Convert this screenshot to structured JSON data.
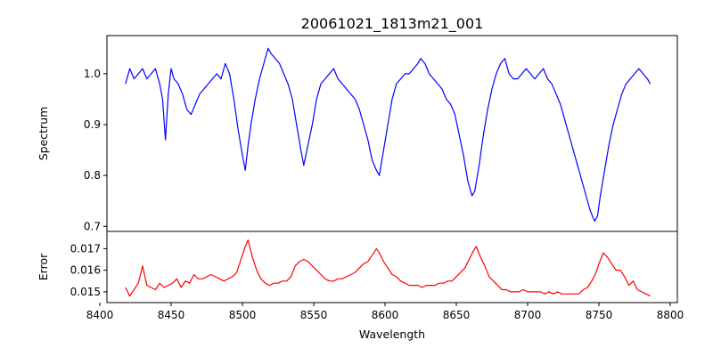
{
  "chart_data": [
    {
      "type": "line",
      "title": "20061021_1813m21_001",
      "xlabel": "",
      "ylabel": "Spectrum",
      "xlim": [
        8405,
        8805
      ],
      "ylim": [
        0.69,
        1.075
      ],
      "yticks": [
        0.7,
        0.8,
        0.9,
        1.0
      ],
      "ytick_labels": [
        "0.7",
        "0.8",
        "0.9",
        "1.0"
      ],
      "grid": false,
      "series": [
        {
          "color": "#0000ff",
          "x": [
            8418,
            8421,
            8424,
            8427,
            8430,
            8433,
            8436,
            8439,
            8442,
            8444,
            8446,
            8448,
            8450,
            8452,
            8455,
            8458,
            8461,
            8464,
            8467,
            8470,
            8473,
            8476,
            8479,
            8482,
            8485,
            8488,
            8491,
            8494,
            8497,
            8500,
            8502,
            8504,
            8506,
            8509,
            8512,
            8515,
            8518,
            8520,
            8523,
            8526,
            8529,
            8532,
            8535,
            8538,
            8541,
            8543,
            8546,
            8549,
            8552,
            8555,
            8558,
            8561,
            8564,
            8567,
            8570,
            8573,
            8576,
            8579,
            8582,
            8585,
            8588,
            8591,
            8594,
            8596,
            8599,
            8602,
            8605,
            8608,
            8611,
            8614,
            8617,
            8620,
            8623,
            8625,
            8628,
            8631,
            8634,
            8637,
            8640,
            8643,
            8646,
            8649,
            8652,
            8655,
            8658,
            8661,
            8663,
            8666,
            8669,
            8672,
            8675,
            8678,
            8681,
            8684,
            8687,
            8690,
            8693,
            8696,
            8699,
            8702,
            8705,
            8708,
            8711,
            8714,
            8717,
            8720,
            8723,
            8726,
            8729,
            8732,
            8735,
            8738,
            8741,
            8744,
            8747,
            8749,
            8751,
            8754,
            8757,
            8760,
            8763,
            8766,
            8769,
            8772,
            8775,
            8778,
            8781,
            8784,
            8786
          ],
          "y": [
            0.98,
            1.01,
            0.99,
            1.0,
            1.01,
            0.99,
            1.0,
            1.01,
            0.98,
            0.95,
            0.87,
            0.96,
            1.01,
            0.99,
            0.98,
            0.96,
            0.93,
            0.92,
            0.94,
            0.96,
            0.97,
            0.98,
            0.99,
            1.0,
            0.99,
            1.02,
            1.0,
            0.95,
            0.89,
            0.84,
            0.81,
            0.86,
            0.9,
            0.95,
            0.99,
            1.02,
            1.05,
            1.04,
            1.03,
            1.02,
            1.0,
            0.98,
            0.95,
            0.9,
            0.85,
            0.82,
            0.86,
            0.9,
            0.95,
            0.98,
            0.99,
            1.0,
            1.01,
            0.99,
            0.98,
            0.97,
            0.96,
            0.95,
            0.93,
            0.9,
            0.87,
            0.83,
            0.81,
            0.8,
            0.85,
            0.9,
            0.95,
            0.98,
            0.99,
            1.0,
            1.0,
            1.01,
            1.02,
            1.03,
            1.02,
            1.0,
            0.99,
            0.98,
            0.97,
            0.95,
            0.94,
            0.92,
            0.88,
            0.84,
            0.79,
            0.76,
            0.77,
            0.82,
            0.88,
            0.93,
            0.97,
            1.0,
            1.02,
            1.03,
            1.0,
            0.99,
            0.99,
            1.0,
            1.01,
            1.0,
            0.99,
            1.0,
            1.01,
            0.99,
            0.98,
            0.96,
            0.94,
            0.91,
            0.88,
            0.85,
            0.82,
            0.79,
            0.76,
            0.73,
            0.71,
            0.72,
            0.76,
            0.81,
            0.86,
            0.9,
            0.93,
            0.96,
            0.98,
            0.99,
            1.0,
            1.01,
            1.0,
            0.99,
            0.98
          ]
        }
      ]
    },
    {
      "type": "line",
      "title": "",
      "xlabel": "Wavelength",
      "ylabel": "Error",
      "xlim": [
        8405,
        8805
      ],
      "ylim": [
        0.0145,
        0.0178
      ],
      "xticks": [
        8400,
        8450,
        8500,
        8550,
        8600,
        8650,
        8700,
        8750,
        8800
      ],
      "xtick_labels": [
        "8400",
        "8450",
        "8500",
        "8550",
        "8600",
        "8650",
        "8700",
        "8750",
        "8800"
      ],
      "yticks": [
        0.015,
        0.016,
        0.017
      ],
      "ytick_labels": [
        "0.015",
        "0.016",
        "0.017"
      ],
      "grid": false,
      "series": [
        {
          "color": "#ff0000",
          "x": [
            8418,
            8421,
            8424,
            8427,
            8430,
            8433,
            8436,
            8439,
            8442,
            8445,
            8448,
            8451,
            8454,
            8457,
            8460,
            8463,
            8466,
            8469,
            8472,
            8475,
            8478,
            8481,
            8484,
            8487,
            8490,
            8493,
            8496,
            8499,
            8502,
            8504,
            8507,
            8510,
            8513,
            8516,
            8519,
            8522,
            8525,
            8528,
            8531,
            8534,
            8537,
            8540,
            8543,
            8546,
            8549,
            8552,
            8555,
            8558,
            8561,
            8564,
            8567,
            8570,
            8573,
            8576,
            8579,
            8582,
            8585,
            8588,
            8591,
            8594,
            8596,
            8599,
            8602,
            8605,
            8608,
            8611,
            8614,
            8617,
            8620,
            8623,
            8626,
            8629,
            8632,
            8635,
            8638,
            8641,
            8644,
            8647,
            8650,
            8653,
            8656,
            8659,
            8662,
            8664,
            8667,
            8670,
            8673,
            8676,
            8679,
            8682,
            8685,
            8688,
            8691,
            8694,
            8697,
            8700,
            8703,
            8706,
            8709,
            8712,
            8715,
            8718,
            8721,
            8724,
            8727,
            8730,
            8733,
            8736,
            8739,
            8742,
            8745,
            8748,
            8750,
            8753,
            8756,
            8759,
            8762,
            8765,
            8768,
            8771,
            8774,
            8777,
            8780,
            8783,
            8786
          ],
          "y": [
            0.0152,
            0.0148,
            0.0151,
            0.0154,
            0.0162,
            0.0153,
            0.0152,
            0.0151,
            0.0154,
            0.0152,
            0.0153,
            0.0154,
            0.0156,
            0.0152,
            0.0155,
            0.0154,
            0.0158,
            0.0156,
            0.0156,
            0.0157,
            0.0158,
            0.0157,
            0.0156,
            0.0155,
            0.0156,
            0.0157,
            0.0159,
            0.0165,
            0.0171,
            0.0174,
            0.0166,
            0.016,
            0.0156,
            0.0154,
            0.0153,
            0.0154,
            0.0154,
            0.0155,
            0.0155,
            0.0157,
            0.0162,
            0.0164,
            0.0165,
            0.0164,
            0.0162,
            0.016,
            0.0158,
            0.0156,
            0.0155,
            0.0155,
            0.0156,
            0.0156,
            0.0157,
            0.0158,
            0.0159,
            0.0161,
            0.0163,
            0.0164,
            0.0167,
            0.017,
            0.0168,
            0.0164,
            0.0161,
            0.0158,
            0.0157,
            0.0155,
            0.0154,
            0.0153,
            0.0153,
            0.0153,
            0.0152,
            0.0153,
            0.0153,
            0.0153,
            0.0154,
            0.0154,
            0.0155,
            0.0155,
            0.0157,
            0.0159,
            0.0161,
            0.0165,
            0.0169,
            0.0171,
            0.0166,
            0.0162,
            0.0157,
            0.0155,
            0.0153,
            0.0151,
            0.0151,
            0.015,
            0.015,
            0.015,
            0.0151,
            0.015,
            0.015,
            0.015,
            0.015,
            0.0149,
            0.015,
            0.0149,
            0.015,
            0.0149,
            0.0149,
            0.0149,
            0.0149,
            0.0149,
            0.0151,
            0.0152,
            0.0155,
            0.0159,
            0.0163,
            0.0168,
            0.0166,
            0.0163,
            0.016,
            0.016,
            0.0157,
            0.0153,
            0.0155,
            0.0151,
            0.015,
            0.0149,
            0.0148
          ]
        }
      ]
    }
  ]
}
